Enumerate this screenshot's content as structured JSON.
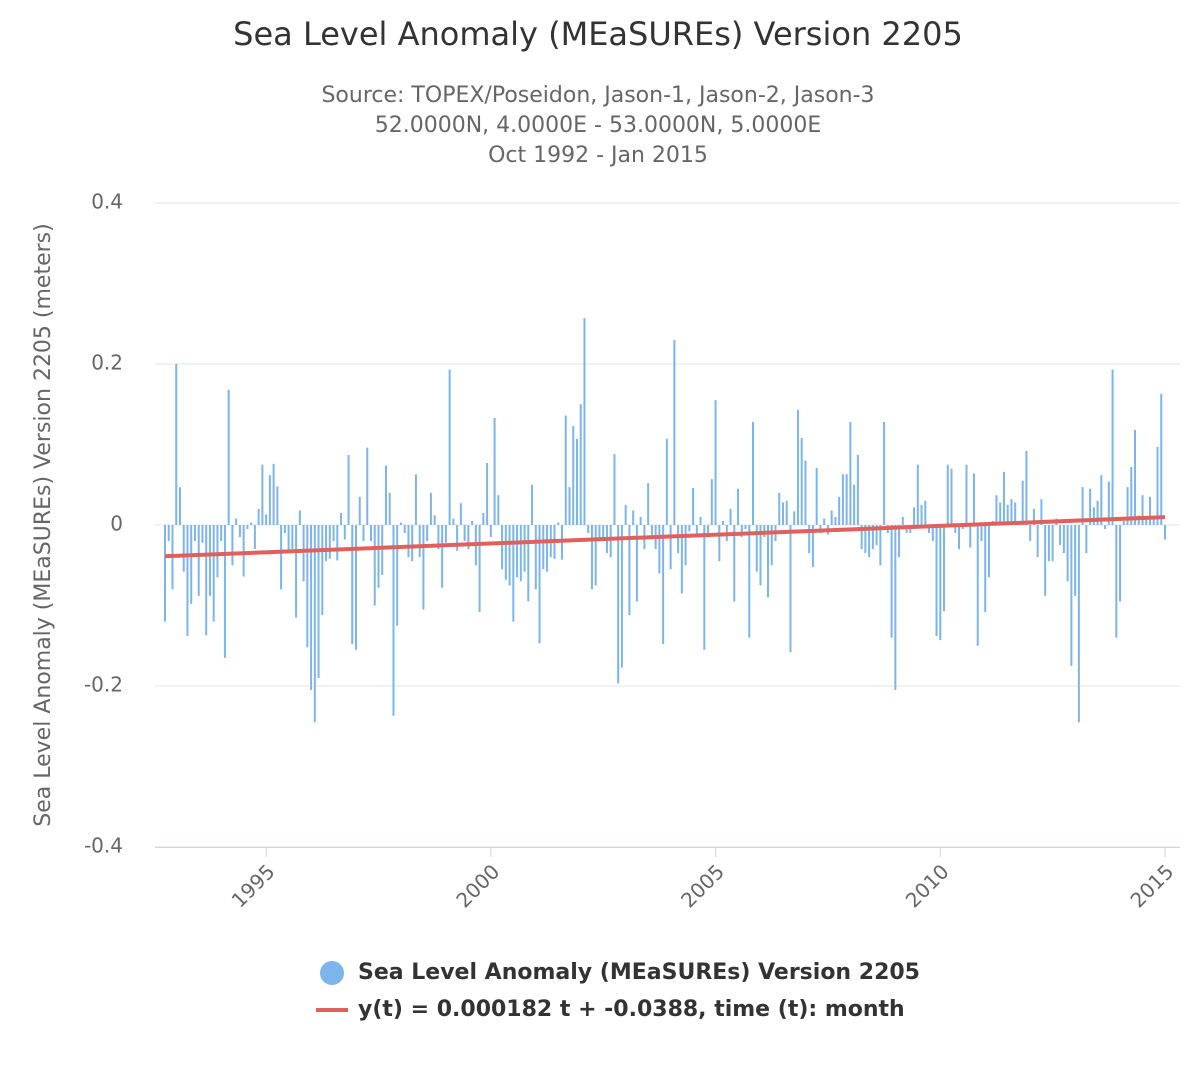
{
  "chart_data": {
    "type": "bar",
    "title": "Sea Level Anomaly (MEaSUREs) Version 2205",
    "subtitle": [
      "Source: TOPEX/Poseidon, Jason-1, Jason-2, Jason-3",
      "52.0000N, 4.0000E - 53.0000N, 5.0000E",
      "Oct 1992 - Jan 2015"
    ],
    "y_label": "Sea Level Anomaly (MEaSUREs) Version 2205 (meters)",
    "ylim": [
      -0.4,
      0.4
    ],
    "yticks": [
      -0.4,
      -0.2,
      0,
      0.2,
      0.4
    ],
    "grid": true,
    "categories": [
      null,
      null,
      null,
      null,
      null,
      null,
      null,
      null,
      null,
      null,
      null,
      null,
      null,
      null,
      null,
      null,
      null,
      null,
      null,
      null,
      null,
      null,
      null,
      null,
      null,
      null,
      null,
      "1995",
      null,
      null,
      null,
      null,
      null,
      null,
      null,
      null,
      null,
      null,
      null,
      null,
      null,
      null,
      null,
      null,
      null,
      null,
      null,
      null,
      null,
      null,
      null,
      null,
      null,
      null,
      null,
      null,
      null,
      null,
      null,
      null,
      null,
      null,
      null,
      null,
      null,
      null,
      null,
      null,
      null,
      null,
      null,
      null,
      null,
      null,
      null,
      null,
      null,
      null,
      null,
      null,
      null,
      null,
      null,
      null,
      null,
      null,
      null,
      "2000",
      null,
      null,
      null,
      null,
      null,
      null,
      null,
      null,
      null,
      null,
      null,
      null,
      null,
      null,
      null,
      null,
      null,
      null,
      null,
      null,
      null,
      null,
      null,
      null,
      null,
      null,
      null,
      null,
      null,
      null,
      null,
      null,
      null,
      null,
      null,
      null,
      null,
      null,
      null,
      null,
      null,
      null,
      null,
      null,
      null,
      null,
      null,
      null,
      null,
      null,
      null,
      null,
      null,
      null,
      null,
      null,
      null,
      null,
      null,
      "2005",
      null,
      null,
      null,
      null,
      null,
      null,
      null,
      null,
      null,
      null,
      null,
      null,
      null,
      null,
      null,
      null,
      null,
      null,
      null,
      null,
      null,
      null,
      null,
      null,
      null,
      null,
      null,
      null,
      null,
      null,
      null,
      null,
      null,
      null,
      null,
      null,
      null,
      null,
      null,
      null,
      null,
      null,
      null,
      null,
      null,
      null,
      null,
      null,
      null,
      null,
      null,
      null,
      null,
      null,
      null,
      null,
      null,
      null,
      null,
      "2010",
      null,
      null,
      null,
      null,
      null,
      null,
      null,
      null,
      null,
      null,
      null,
      null,
      null,
      null,
      null,
      null,
      null,
      null,
      null,
      null,
      null,
      null,
      null,
      null,
      null,
      null,
      null,
      null,
      null,
      null,
      null,
      null,
      null,
      null,
      null,
      null,
      null,
      null,
      null,
      null,
      null,
      null,
      null,
      null,
      null,
      null,
      null,
      null,
      null,
      null,
      null,
      null,
      null,
      null,
      null,
      null,
      null,
      null,
      null,
      "2015"
    ],
    "series": [
      {
        "name": "Sea Level Anomaly (MEaSUREs) Version 2205",
        "color": "#7cb5ec",
        "values": [
          -0.12,
          -0.02,
          -0.08,
          0.2,
          0.047,
          -0.058,
          -0.138,
          -0.098,
          -0.02,
          -0.088,
          -0.022,
          -0.137,
          -0.088,
          -0.12,
          -0.065,
          -0.02,
          -0.165,
          0.168,
          -0.05,
          0.008,
          -0.015,
          -0.064,
          -0.005,
          0.003,
          -0.03,
          0.02,
          0.075,
          0.013,
          0.062,
          0.076,
          0.048,
          -0.08,
          -0.01,
          -0.035,
          -0.03,
          -0.115,
          0.018,
          -0.07,
          -0.152,
          -0.205,
          -0.245,
          -0.19,
          -0.112,
          -0.045,
          -0.042,
          -0.02,
          -0.044,
          0.015,
          -0.018,
          0.087,
          -0.148,
          -0.155,
          0.035,
          -0.02,
          0.096,
          -0.02,
          -0.1,
          -0.078,
          -0.062,
          0.074,
          0.04,
          -0.237,
          -0.125,
          0.003,
          -0.01,
          -0.04,
          -0.045,
          0.063,
          -0.04,
          -0.105,
          -0.02,
          0.04,
          0.012,
          -0.03,
          -0.078,
          -0.022,
          0.193,
          0.008,
          -0.032,
          0.027,
          -0.02,
          -0.03,
          0.005,
          -0.05,
          -0.108,
          0.015,
          0.077,
          -0.015,
          0.133,
          0.037,
          -0.055,
          -0.068,
          -0.075,
          -0.12,
          -0.065,
          -0.07,
          -0.058,
          -0.095,
          0.05,
          -0.08,
          -0.147,
          -0.055,
          -0.058,
          -0.04,
          -0.042,
          0.003,
          -0.043,
          0.136,
          0.047,
          0.123,
          0.107,
          0.15,
          0.257,
          -0.01,
          -0.08,
          -0.075,
          -0.02,
          -0.02,
          -0.035,
          -0.04,
          0.088,
          -0.197,
          -0.177,
          0.025,
          -0.112,
          0.018,
          -0.095,
          0.01,
          -0.03,
          0.052,
          -0.015,
          -0.03,
          -0.06,
          -0.148,
          0.107,
          -0.055,
          0.23,
          -0.035,
          -0.085,
          -0.05,
          -0.008,
          0.046,
          -0.015,
          0.01,
          -0.155,
          -0.015,
          0.057,
          0.155,
          -0.045,
          0.005,
          -0.02,
          0.02,
          -0.095,
          0.045,
          -0.015,
          -0.005,
          -0.14,
          0.128,
          -0.058,
          -0.075,
          -0.015,
          -0.09,
          -0.05,
          -0.02,
          0.04,
          0.028,
          0.03,
          -0.158,
          0.017,
          0.143,
          0.108,
          0.08,
          -0.035,
          -0.052,
          0.071,
          -0.01,
          0.008,
          -0.012,
          0.018,
          0.01,
          0.035,
          0.063,
          0.063,
          0.128,
          0.05,
          0.087,
          -0.03,
          -0.035,
          -0.04,
          -0.03,
          -0.025,
          -0.05,
          0.128,
          -0.01,
          -0.14,
          -0.205,
          -0.04,
          0.01,
          -0.01,
          -0.01,
          0.022,
          0.075,
          0.025,
          0.03,
          -0.01,
          -0.02,
          -0.138,
          -0.143,
          -0.107,
          0.075,
          0.07,
          -0.01,
          -0.03,
          -0.005,
          0.075,
          -0.028,
          0.064,
          -0.15,
          -0.02,
          -0.108,
          -0.065,
          0.005,
          0.037,
          0.028,
          0.066,
          0.025,
          0.032,
          0.028,
          0.005,
          0.055,
          0.092,
          -0.02,
          0.02,
          -0.04,
          0.032,
          -0.088,
          -0.045,
          -0.045,
          0.008,
          -0.025,
          -0.035,
          -0.07,
          -0.175,
          -0.088,
          -0.245,
          0.047,
          -0.035,
          0.045,
          0.022,
          0.03,
          0.062,
          -0.005,
          0.054,
          0.193,
          -0.14,
          -0.095,
          0.005,
          0.047,
          0.072,
          0.118,
          0.012,
          0.037,
          0.01,
          0.035,
          0.008,
          0.097,
          0.163,
          -0.018
        ]
      },
      {
        "name": "y(t) = 0.000182 t + -0.0388, time (t): month",
        "type": "trend",
        "color": "#e0605e",
        "slope": 0.000182,
        "intercept": -0.0388
      }
    ]
  }
}
